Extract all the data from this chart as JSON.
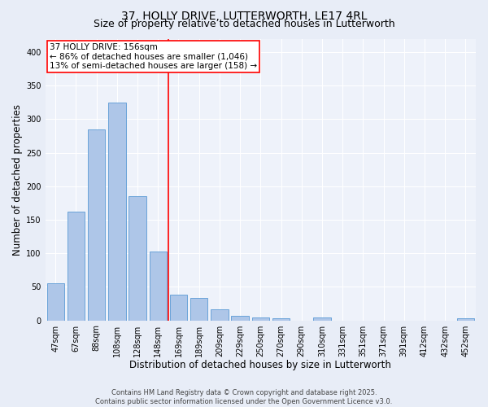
{
  "title_line1": "37, HOLLY DRIVE, LUTTERWORTH, LE17 4RL",
  "title_line2": "Size of property relative to detached houses in Lutterworth",
  "xlabel": "Distribution of detached houses by size in Lutterworth",
  "ylabel": "Number of detached properties",
  "categories": [
    "47sqm",
    "67sqm",
    "88sqm",
    "108sqm",
    "128sqm",
    "148sqm",
    "169sqm",
    "189sqm",
    "209sqm",
    "229sqm",
    "250sqm",
    "270sqm",
    "290sqm",
    "310sqm",
    "331sqm",
    "351sqm",
    "371sqm",
    "391sqm",
    "412sqm",
    "432sqm",
    "452sqm"
  ],
  "values": [
    55,
    162,
    285,
    325,
    185,
    103,
    38,
    33,
    16,
    7,
    4,
    3,
    0,
    4,
    0,
    0,
    0,
    0,
    0,
    0,
    3
  ],
  "bar_color": "#aec6e8",
  "bar_edge_color": "#5a9ad5",
  "vline_x": 5.5,
  "vline_color": "red",
  "annotation_text": "37 HOLLY DRIVE: 156sqm\n← 86% of detached houses are smaller (1,046)\n13% of semi-detached houses are larger (158) →",
  "annotation_box_color": "white",
  "annotation_box_edge_color": "red",
  "ylim": [
    0,
    420
  ],
  "yticks": [
    0,
    50,
    100,
    150,
    200,
    250,
    300,
    350,
    400
  ],
  "background_color": "#e8edf7",
  "plot_background_color": "#eef2fa",
  "footer_line1": "Contains HM Land Registry data © Crown copyright and database right 2025.",
  "footer_line2": "Contains public sector information licensed under the Open Government Licence v3.0.",
  "grid_color": "white",
  "title_fontsize": 10,
  "subtitle_fontsize": 9,
  "tick_fontsize": 7,
  "label_fontsize": 8.5,
  "annotation_fontsize": 7.5,
  "footer_fontsize": 6,
  "ylabel_text": "Number of detached properties"
}
